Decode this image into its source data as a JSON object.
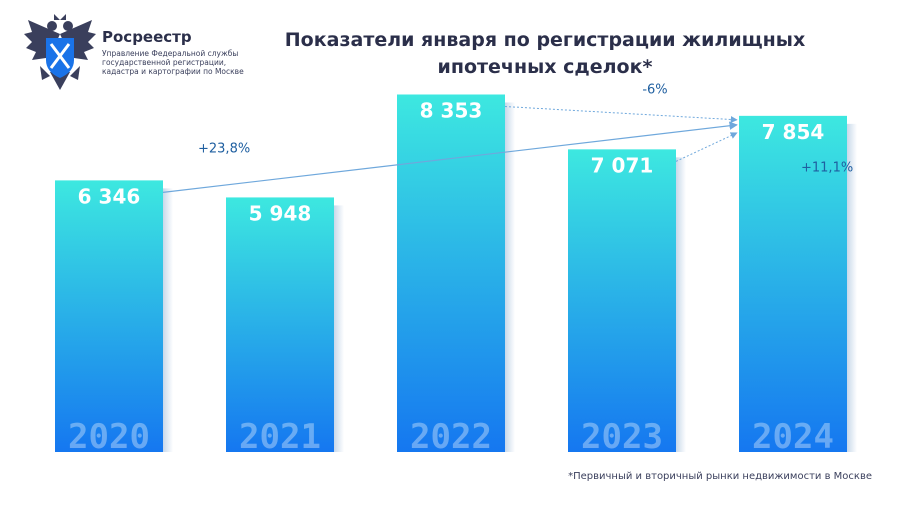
{
  "brand": {
    "name": "Росреестр",
    "subtitle_lines": [
      "Управление Федеральной службы",
      "государственной регистрации,",
      "кадастра и картографии по Москве"
    ]
  },
  "colors": {
    "bar_top": "#3de8e0",
    "bar_bottom": "#1577f0",
    "arrow": "#6fa8dc",
    "text": "#2b2f4a"
  },
  "chart_data": {
    "type": "bar",
    "title_lines": [
      "Показатели января по регистрации жилищных",
      "ипотечных сделок*"
    ],
    "categories": [
      "2020",
      "2021",
      "2022",
      "2023",
      "2024"
    ],
    "values": [
      6346,
      5948,
      8353,
      7071,
      7854
    ],
    "value_labels": [
      "6 346",
      "5 948",
      "8 353",
      "7 071",
      "7 854"
    ],
    "ylim": [
      0,
      10000
    ],
    "grid": false,
    "annotations": [
      {
        "from": "2020",
        "to": "2024",
        "label": "+23,8%"
      },
      {
        "from": "2022",
        "to": "2024",
        "label": "-6%"
      },
      {
        "from": "2023",
        "to": "2024",
        "label": "+11,1%"
      }
    ]
  },
  "footnote": "*Первичный и вторичный рынки недвижимости в Москве"
}
